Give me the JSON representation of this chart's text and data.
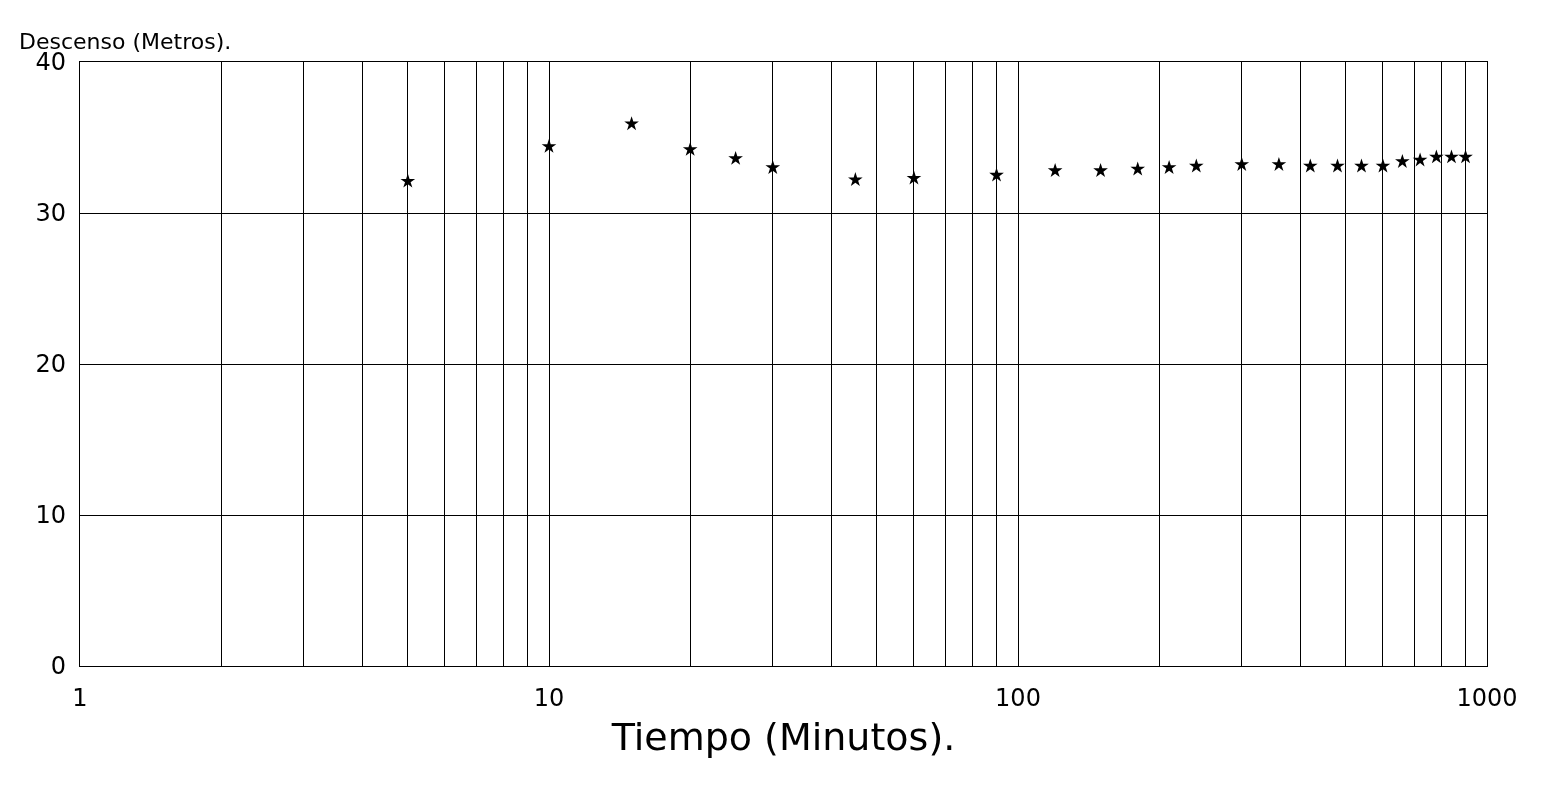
{
  "chart_data": {
    "type": "scatter",
    "xlabel": "Tiempo (Minutos).",
    "ylabel": "Descenso (Metros).",
    "x": [
      5,
      10,
      15,
      20,
      25,
      30,
      45,
      60,
      90,
      120,
      150,
      180,
      210,
      240,
      300,
      360,
      420,
      480,
      540,
      600,
      660,
      720,
      780,
      840,
      900
    ],
    "values": [
      32.1,
      34.4,
      35.9,
      34.2,
      33.6,
      33.0,
      32.2,
      32.3,
      32.5,
      32.8,
      32.8,
      32.9,
      33.0,
      33.1,
      33.2,
      33.2,
      33.1,
      33.1,
      33.1,
      33.1,
      33.4,
      33.5,
      33.7,
      33.7,
      33.7
    ],
    "color": "#000000",
    "marker": "star",
    "log": "x",
    "xlim": [
      1,
      1000
    ],
    "xticks": [
      1,
      10,
      100,
      1000
    ],
    "ylim": [
      0,
      40
    ],
    "yticks": [
      0,
      10,
      20,
      30,
      40
    ],
    "grid": true
  }
}
